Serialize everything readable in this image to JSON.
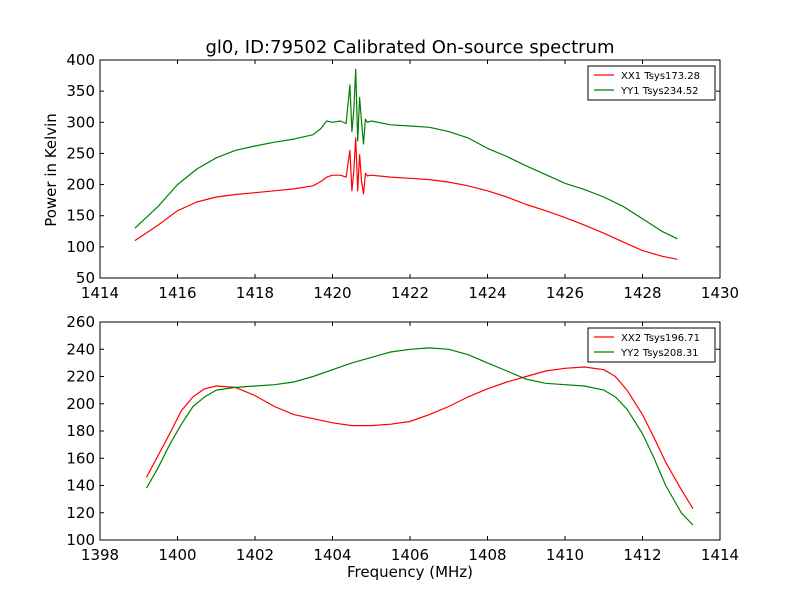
{
  "chart_data": [
    {
      "type": "line",
      "title": "gl0, ID:79502 Calibrated On-source spectrum",
      "xlabel": "",
      "ylabel": "Power in Kelvin",
      "xlim": [
        1414,
        1430
      ],
      "ylim": [
        50,
        400
      ],
      "xticks": [
        "1414",
        "1416",
        "1418",
        "1420",
        "1422",
        "1424",
        "1426",
        "1428",
        "1430"
      ],
      "yticks": [
        "50",
        "100",
        "150",
        "200",
        "250",
        "300",
        "350",
        "400"
      ],
      "legend_position": "top-right",
      "series": [
        {
          "name": "XX1 Tsys173.28",
          "color": "#ff0000",
          "x": [
            1414.9,
            1415.5,
            1416.0,
            1416.5,
            1417.0,
            1417.5,
            1418.0,
            1418.5,
            1419.0,
            1419.5,
            1419.7,
            1419.85,
            1420.0,
            1420.2,
            1420.35,
            1420.45,
            1420.5,
            1420.55,
            1420.6,
            1420.65,
            1420.7,
            1420.75,
            1420.8,
            1420.85,
            1420.9,
            1421.0,
            1421.5,
            1422.0,
            1422.5,
            1423.0,
            1423.5,
            1424.0,
            1424.5,
            1425.0,
            1425.5,
            1426.0,
            1426.5,
            1427.0,
            1427.5,
            1428.0,
            1428.5,
            1428.9
          ],
          "values": [
            110,
            135,
            158,
            172,
            180,
            184,
            187,
            190,
            193,
            198,
            205,
            212,
            215,
            215,
            212,
            255,
            190,
            222,
            275,
            190,
            248,
            205,
            185,
            218,
            214,
            215,
            212,
            210,
            208,
            204,
            198,
            190,
            180,
            168,
            158,
            147,
            135,
            122,
            108,
            94,
            85,
            80
          ]
        },
        {
          "name": "YY1 Tsys234.52",
          "color": "#008000",
          "x": [
            1414.9,
            1415.5,
            1416.0,
            1416.5,
            1417.0,
            1417.5,
            1418.0,
            1418.5,
            1419.0,
            1419.5,
            1419.7,
            1419.85,
            1420.0,
            1420.2,
            1420.35,
            1420.45,
            1420.5,
            1420.55,
            1420.6,
            1420.65,
            1420.7,
            1420.75,
            1420.8,
            1420.85,
            1420.9,
            1421.0,
            1421.5,
            1422.0,
            1422.5,
            1423.0,
            1423.5,
            1424.0,
            1424.5,
            1425.0,
            1425.5,
            1426.0,
            1426.5,
            1427.0,
            1427.5,
            1428.0,
            1428.5,
            1428.9
          ],
          "values": [
            130,
            165,
            200,
            225,
            243,
            255,
            262,
            268,
            273,
            280,
            290,
            302,
            300,
            302,
            298,
            360,
            285,
            320,
            385,
            270,
            340,
            300,
            265,
            305,
            300,
            302,
            296,
            294,
            292,
            285,
            275,
            258,
            245,
            230,
            216,
            202,
            192,
            180,
            165,
            145,
            125,
            113
          ]
        }
      ]
    },
    {
      "type": "line",
      "title": "",
      "xlabel": "Frequency (MHz)",
      "ylabel": "",
      "xlim": [
        1398,
        1414
      ],
      "ylim": [
        100,
        260
      ],
      "xticks": [
        "1398",
        "1400",
        "1402",
        "1404",
        "1406",
        "1408",
        "1410",
        "1412",
        "1414"
      ],
      "yticks": [
        "100",
        "120",
        "140",
        "160",
        "180",
        "200",
        "220",
        "240",
        "260"
      ],
      "legend_position": "top-right",
      "series": [
        {
          "name": "XX2 Tsys196.71",
          "color": "#ff0000",
          "x": [
            1399.2,
            1399.5,
            1399.8,
            1400.1,
            1400.4,
            1400.7,
            1401.0,
            1401.5,
            1402.0,
            1402.5,
            1403.0,
            1403.5,
            1404.0,
            1404.5,
            1405.0,
            1405.5,
            1406.0,
            1406.5,
            1407.0,
            1407.5,
            1408.0,
            1408.5,
            1409.0,
            1409.5,
            1410.0,
            1410.5,
            1411.0,
            1411.3,
            1411.6,
            1412.0,
            1412.3,
            1412.6,
            1413.0,
            1413.3
          ],
          "values": [
            146,
            162,
            178,
            195,
            205,
            211,
            213,
            212,
            206,
            198,
            192,
            189,
            186,
            184,
            184,
            185,
            187,
            192,
            198,
            205,
            211,
            216,
            220,
            224,
            226,
            227,
            225,
            220,
            210,
            192,
            175,
            157,
            137,
            123
          ]
        },
        {
          "name": "YY2 Tsys208.31",
          "color": "#008000",
          "x": [
            1399.2,
            1399.5,
            1399.8,
            1400.1,
            1400.4,
            1400.7,
            1401.0,
            1401.5,
            1402.0,
            1402.5,
            1403.0,
            1403.5,
            1404.0,
            1404.5,
            1405.0,
            1405.5,
            1406.0,
            1406.5,
            1407.0,
            1407.5,
            1408.0,
            1408.5,
            1409.0,
            1409.5,
            1410.0,
            1410.5,
            1411.0,
            1411.3,
            1411.6,
            1412.0,
            1412.3,
            1412.6,
            1413.0,
            1413.3
          ],
          "values": [
            138,
            153,
            170,
            185,
            198,
            205,
            210,
            212,
            213,
            214,
            216,
            220,
            225,
            230,
            234,
            238,
            240,
            241,
            240,
            236,
            230,
            224,
            218,
            215,
            214,
            213,
            210,
            205,
            196,
            178,
            160,
            140,
            120,
            111
          ]
        }
      ]
    }
  ]
}
